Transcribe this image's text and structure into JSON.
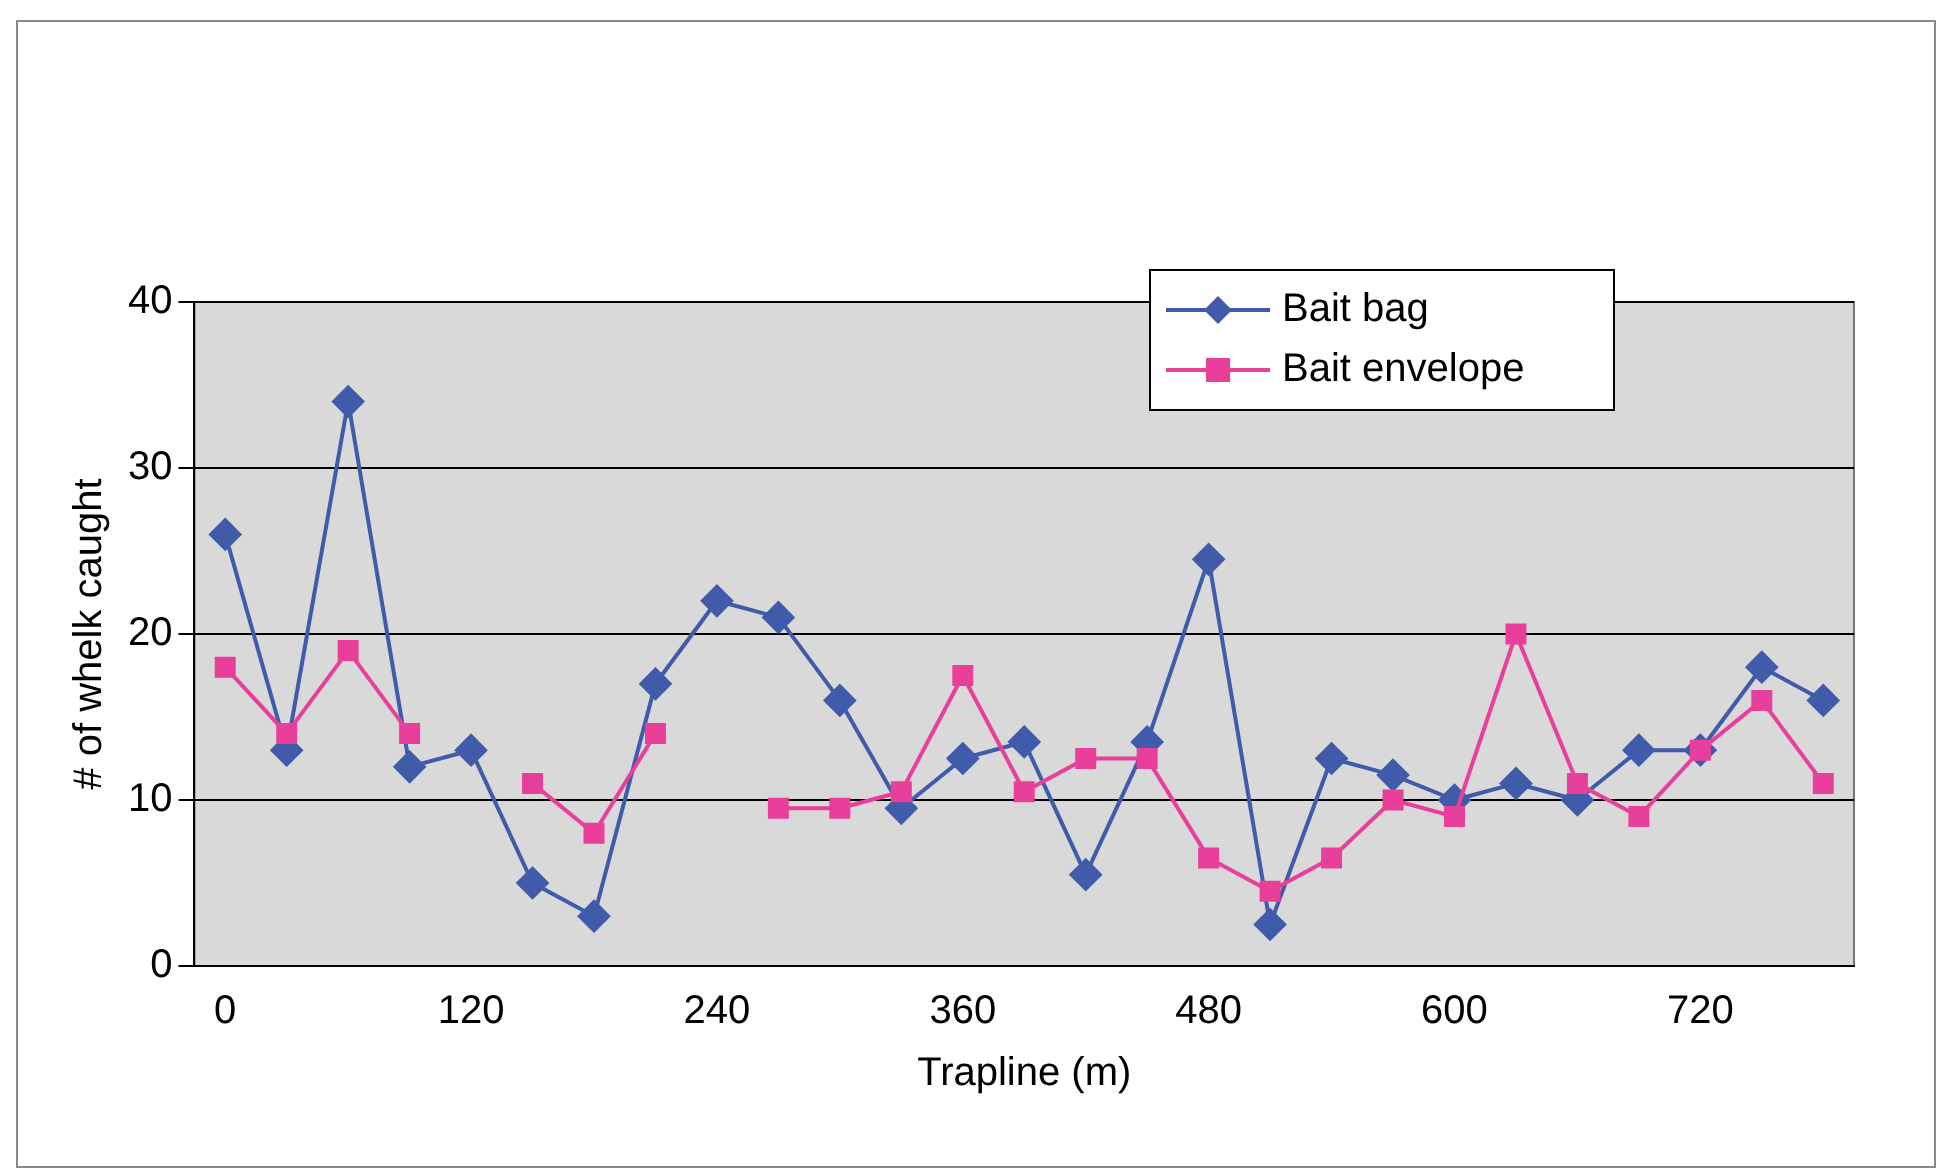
{
  "chart_data": {
    "type": "line",
    "xlabel": "Trapline (m)",
    "ylabel": "# of whelk caught",
    "categories": [
      "0",
      null,
      null,
      null,
      "120",
      null,
      null,
      null,
      "240",
      null,
      null,
      null,
      "360",
      null,
      null,
      null,
      "480",
      null,
      null,
      null,
      "600",
      null,
      null,
      null,
      "720",
      null,
      null
    ],
    "series": [
      {
        "name": "Bait bag",
        "color": "#3f5ba9",
        "marker": "diamond",
        "values": [
          26,
          13,
          34,
          12,
          13,
          5,
          3,
          17,
          22,
          21,
          16,
          9.5,
          12.5,
          13.5,
          5.5,
          13.5,
          24.5,
          2.5,
          12.5,
          11.5,
          10,
          11,
          10,
          13,
          13,
          18,
          16
        ]
      },
      {
        "name": "Bait envelope",
        "color": "#e8409a",
        "marker": "square",
        "values": [
          18,
          14,
          19,
          14,
          null,
          11,
          8,
          14,
          null,
          9.5,
          9.5,
          10.5,
          17.5,
          10.5,
          12.5,
          12.5,
          6.5,
          4.5,
          6.5,
          10,
          9,
          20,
          11,
          9,
          13,
          16,
          11
        ]
      }
    ],
    "ylim": [
      0,
      40
    ],
    "yticks": [
      0,
      10,
      20,
      30,
      40
    ],
    "grid": "y",
    "legend": "top right",
    "line_style": "solid"
  }
}
